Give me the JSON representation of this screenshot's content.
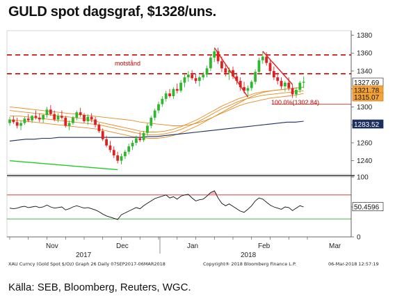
{
  "title": "GULD spot dagsgraf, $1328/uns.",
  "source": "Källa: SEB, Bloomberg, Reuters, WGC.",
  "footer": {
    "left": "XAU Curncy (Gold Spot  $/Oz) Graph 26  Daily 07SEP2017-06MAR2018",
    "center": "Copyright® 2018 Bloomberg Finance L.P.",
    "right": "06-Mar-2018 12:57:19"
  },
  "colors": {
    "up": "#2db82d",
    "down": "#e02020",
    "resistance": "#d40000",
    "ma_orange": "#e68a1e",
    "ma_blue": "#1c2f5e",
    "trend_green": "#22cc22",
    "rsi": "#111111",
    "rsi_upper": "#cc2222",
    "rsi_lower": "#33aa33",
    "rsi_fill": "#f2b8b8"
  },
  "chart_data": [
    {
      "type": "candlestick",
      "title": "",
      "x_ticks": [
        "Nov",
        "Dec",
        "Jan",
        "Feb",
        "Mar"
      ],
      "x_year_labels": [
        "2017",
        "2018"
      ],
      "ylim": [
        1225,
        1385
      ],
      "y_ticks": [
        1240,
        1260,
        1280,
        1300,
        1320,
        1340,
        1360,
        1380
      ],
      "resistance_levels": [
        1358,
        1337
      ],
      "annotations": {
        "resistance_label": "motstånd",
        "fib_label": "100.0%(1302.84)",
        "fib_level": 1302.84
      },
      "last_value_badges": [
        {
          "label": "1327.69",
          "value": 1327.69,
          "style": "white"
        },
        {
          "label": "1321.78",
          "value": 1321.78,
          "style": "orange"
        },
        {
          "label": "1315.07",
          "value": 1315.07,
          "style": "orange"
        },
        {
          "label": "1283.52",
          "value": 1283.52,
          "style": "blue"
        }
      ],
      "candles": [
        [
          1282,
          1289,
          1279,
          1286
        ],
        [
          1286,
          1290,
          1281,
          1283
        ],
        [
          1283,
          1288,
          1276,
          1279
        ],
        [
          1279,
          1285,
          1274,
          1282
        ],
        [
          1282,
          1289,
          1280,
          1287
        ],
        [
          1287,
          1292,
          1283,
          1285
        ],
        [
          1285,
          1291,
          1282,
          1290
        ],
        [
          1290,
          1296,
          1286,
          1288
        ],
        [
          1288,
          1293,
          1283,
          1286
        ],
        [
          1286,
          1292,
          1282,
          1291
        ],
        [
          1291,
          1300,
          1288,
          1297
        ],
        [
          1297,
          1302,
          1290,
          1292
        ],
        [
          1292,
          1296,
          1284,
          1286
        ],
        [
          1286,
          1293,
          1283,
          1290
        ],
        [
          1290,
          1296,
          1286,
          1288
        ],
        [
          1288,
          1290,
          1277,
          1279
        ],
        [
          1279,
          1285,
          1274,
          1282
        ],
        [
          1282,
          1290,
          1280,
          1288
        ],
        [
          1288,
          1296,
          1285,
          1294
        ],
        [
          1294,
          1299,
          1289,
          1291
        ],
        [
          1291,
          1293,
          1282,
          1284
        ],
        [
          1284,
          1292,
          1280,
          1289
        ],
        [
          1289,
          1293,
          1283,
          1286
        ],
        [
          1286,
          1289,
          1277,
          1280
        ],
        [
          1280,
          1282,
          1271,
          1273
        ],
        [
          1273,
          1276,
          1262,
          1264
        ],
        [
          1264,
          1268,
          1255,
          1257
        ],
        [
          1257,
          1262,
          1249,
          1252
        ],
        [
          1252,
          1256,
          1243,
          1246
        ],
        [
          1246,
          1250,
          1237,
          1240
        ],
        [
          1240,
          1248,
          1236,
          1245
        ],
        [
          1245,
          1252,
          1242,
          1250
        ],
        [
          1250,
          1259,
          1247,
          1256
        ],
        [
          1256,
          1263,
          1252,
          1260
        ],
        [
          1260,
          1268,
          1257,
          1265
        ],
        [
          1265,
          1272,
          1261,
          1263
        ],
        [
          1263,
          1273,
          1261,
          1271
        ],
        [
          1271,
          1282,
          1268,
          1279
        ],
        [
          1279,
          1290,
          1276,
          1288
        ],
        [
          1288,
          1298,
          1285,
          1296
        ],
        [
          1296,
          1306,
          1293,
          1303
        ],
        [
          1303,
          1312,
          1300,
          1309
        ],
        [
          1309,
          1318,
          1306,
          1315
        ],
        [
          1315,
          1320,
          1310,
          1312
        ],
        [
          1312,
          1322,
          1309,
          1320
        ],
        [
          1320,
          1326,
          1315,
          1318
        ],
        [
          1318,
          1330,
          1316,
          1327
        ],
        [
          1327,
          1336,
          1322,
          1333
        ],
        [
          1333,
          1340,
          1328,
          1336
        ],
        [
          1336,
          1341,
          1330,
          1332
        ],
        [
          1332,
          1337,
          1326,
          1329
        ],
        [
          1329,
          1335,
          1323,
          1333
        ],
        [
          1333,
          1339,
          1330,
          1336
        ],
        [
          1336,
          1346,
          1333,
          1343
        ],
        [
          1343,
          1358,
          1340,
          1355
        ],
        [
          1355,
          1365,
          1350,
          1362
        ],
        [
          1362,
          1366,
          1348,
          1351
        ],
        [
          1351,
          1356,
          1339,
          1343
        ],
        [
          1343,
          1347,
          1334,
          1338
        ],
        [
          1338,
          1344,
          1330,
          1341
        ],
        [
          1341,
          1345,
          1331,
          1334
        ],
        [
          1334,
          1338,
          1325,
          1329
        ],
        [
          1329,
          1333,
          1318,
          1322
        ],
        [
          1322,
          1328,
          1315,
          1318
        ],
        [
          1318,
          1324,
          1311,
          1321
        ],
        [
          1321,
          1330,
          1318,
          1328
        ],
        [
          1328,
          1342,
          1325,
          1339
        ],
        [
          1339,
          1355,
          1336,
          1352
        ],
        [
          1352,
          1362,
          1348,
          1356
        ],
        [
          1356,
          1361,
          1346,
          1349
        ],
        [
          1349,
          1352,
          1336,
          1340
        ],
        [
          1340,
          1345,
          1330,
          1333
        ],
        [
          1333,
          1338,
          1325,
          1329
        ],
        [
          1329,
          1333,
          1320,
          1323
        ],
        [
          1323,
          1329,
          1317,
          1327
        ],
        [
          1327,
          1333,
          1318,
          1321
        ],
        [
          1321,
          1325,
          1310,
          1314
        ],
        [
          1314,
          1322,
          1310,
          1319
        ],
        [
          1319,
          1329,
          1316,
          1327
        ],
        [
          1327,
          1334,
          1321,
          1328
        ]
      ],
      "ma": [
        {
          "name": "",
          "color": "#e68a1e",
          "values": [
            1300,
            1299,
            1298,
            1297,
            1296,
            1295,
            1294,
            1293,
            1292,
            1291,
            1290,
            1289,
            1288,
            1287,
            1286,
            1285,
            1283,
            1282,
            1281,
            1280,
            1279,
            1279,
            1280,
            1282,
            1285,
            1289,
            1294,
            1299,
            1304,
            1309,
            1313,
            1316,
            1318,
            1319,
            1320,
            1321,
            1322
          ]
        },
        {
          "name": "",
          "color": "#e68a1e",
          "values": [
            1296,
            1295,
            1294,
            1293,
            1292,
            1291,
            1290,
            1289,
            1288,
            1287,
            1285,
            1283,
            1281,
            1279,
            1277,
            1275,
            1273,
            1272,
            1272,
            1273,
            1275,
            1278,
            1282,
            1286,
            1291,
            1296,
            1301,
            1305,
            1309,
            1312,
            1315,
            1317,
            1318,
            1319,
            1320,
            1321,
            1322
          ]
        },
        {
          "name": "",
          "color": "#e68a1e",
          "values": [
            1290,
            1290,
            1289,
            1288,
            1287,
            1286,
            1285,
            1284,
            1283,
            1282,
            1281,
            1280,
            1278,
            1276,
            1274,
            1272,
            1270,
            1269,
            1269,
            1270,
            1272,
            1275,
            1279,
            1283,
            1288,
            1293,
            1298,
            1302,
            1306,
            1309,
            1311,
            1313,
            1314,
            1315,
            1316,
            1317,
            1318
          ]
        },
        {
          "name": "",
          "color": "#e68a1e",
          "values": [
            1285,
            1285,
            1284,
            1283,
            1282,
            1281,
            1280,
            1279,
            1278,
            1277,
            1276,
            1275,
            1273,
            1271,
            1269,
            1267,
            1266,
            1265,
            1265,
            1266,
            1268,
            1271,
            1275,
            1279,
            1284,
            1289,
            1293,
            1297,
            1301,
            1304,
            1306,
            1308,
            1310,
            1311,
            1312,
            1313,
            1315
          ]
        },
        {
          "name": "",
          "color": "#1c2f5e",
          "values": [
            1262,
            1263,
            1264,
            1264,
            1265,
            1265,
            1266,
            1266,
            1266,
            1266,
            1266,
            1266,
            1266,
            1266,
            1266,
            1266,
            1266,
            1267,
            1267,
            1268,
            1269,
            1270,
            1271,
            1272,
            1273,
            1274,
            1275,
            1276,
            1277,
            1278,
            1279,
            1280,
            1281,
            1282,
            1283,
            1283,
            1284
          ]
        }
      ],
      "trendlines": [
        {
          "color": "#22cc22",
          "from": [
            0,
            1240
          ],
          "to": [
            29,
            1230
          ]
        },
        {
          "color": "#e02020",
          "from": [
            55,
            1366
          ],
          "to": [
            64,
            1311
          ]
        },
        {
          "color": "#e02020",
          "from": [
            68,
            1362
          ],
          "to": [
            76,
            1325
          ]
        }
      ]
    },
    {
      "type": "line",
      "title": "",
      "ylim": [
        0,
        100
      ],
      "y_ticks": [
        0,
        50,
        100
      ],
      "upper_band": 70,
      "lower_band": 30,
      "last_value_label": "50.4596",
      "values": [
        48,
        47,
        48,
        50,
        51,
        49,
        50,
        51,
        49,
        50,
        53,
        50,
        48,
        49,
        50,
        45,
        47,
        50,
        52,
        50,
        48,
        49,
        47,
        45,
        42,
        38,
        35,
        33,
        31,
        29,
        37,
        40,
        43,
        46,
        49,
        47,
        52,
        56,
        60,
        64,
        66,
        68,
        70,
        65,
        67,
        63,
        68,
        70,
        71,
        65,
        60,
        62,
        63,
        68,
        74,
        77,
        65,
        56,
        52,
        55,
        51,
        47,
        43,
        41,
        46,
        52,
        60,
        65,
        63,
        58,
        53,
        50,
        48,
        46,
        50,
        49,
        44,
        48,
        52,
        50
      ]
    }
  ]
}
